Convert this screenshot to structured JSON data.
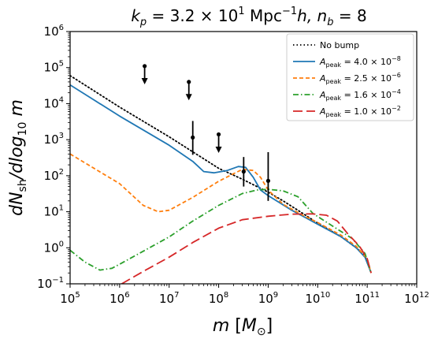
{
  "chart_data": {
    "type": "line",
    "title": "k_p = 3.2 × 10^1 Mpc^-1 h,  n_b = 8",
    "title_parts": {
      "k_label": "k",
      "k_sub": "p",
      "k_value": " = 3.2 × 10",
      "k_exp": "1",
      "units_a": " Mpc",
      "units_exp": "−1",
      "units_b": "h,  ",
      "n_label": "n",
      "n_sub": "b",
      "n_value": " = 8"
    },
    "xlabel": "m [M_⊙]",
    "ylabel": "dN_sh/dlog_10 m",
    "xlabel_parts": {
      "m": "m",
      "open": " [",
      "M": "M",
      "sun": "⊙",
      "close": "]"
    },
    "ylabel_parts": {
      "d1": "dN",
      "sub1": "sh",
      "slash": "/",
      "d2": "d",
      "log": "log",
      "sub2": "10",
      "m": " m"
    },
    "x_scale": "log",
    "y_scale": "log",
    "xlim": [
      100000,
      1000000000000
    ],
    "ylim": [
      0.1,
      1000000
    ],
    "x_ticks": [
      {
        "value": 100000,
        "base": "10",
        "exp": "5"
      },
      {
        "value": 1000000,
        "base": "10",
        "exp": "6"
      },
      {
        "value": 10000000,
        "base": "10",
        "exp": "7"
      },
      {
        "value": 100000000,
        "base": "10",
        "exp": "8"
      },
      {
        "value": 1000000000,
        "base": "10",
        "exp": "9"
      },
      {
        "value": 10000000000,
        "base": "10",
        "exp": "10"
      },
      {
        "value": 100000000000,
        "base": "10",
        "exp": "11"
      },
      {
        "value": 1000000000000,
        "base": "10",
        "exp": "12"
      }
    ],
    "y_ticks": [
      {
        "value": 0.1,
        "base": "10",
        "exp": "−1"
      },
      {
        "value": 1,
        "base": "10",
        "exp": "0"
      },
      {
        "value": 10,
        "base": "10",
        "exp": "1"
      },
      {
        "value": 100,
        "base": "10",
        "exp": "2"
      },
      {
        "value": 1000,
        "base": "10",
        "exp": "3"
      },
      {
        "value": 10000,
        "base": "10",
        "exp": "4"
      },
      {
        "value": 100000,
        "base": "10",
        "exp": "5"
      },
      {
        "value": 1000000,
        "base": "10",
        "exp": "6"
      }
    ],
    "grid": false,
    "legend_position": "top-right",
    "series": [
      {
        "name": "No bump",
        "legend": {
          "pre": "No bump",
          "sub": "",
          "mid": "",
          "exp": ""
        },
        "color": "#000000",
        "style": "dotted",
        "points": [
          [
            100000,
            60000
          ],
          [
            1000000,
            8000
          ],
          [
            10000000,
            1200
          ],
          [
            100000000,
            160
          ],
          [
            300000000,
            80
          ],
          [
            1000000000,
            35
          ],
          [
            2000000000,
            20
          ],
          [
            5000000000,
            9
          ],
          [
            10000000000,
            4.8
          ],
          [
            30000000000,
            2
          ],
          [
            60000000000,
            1
          ],
          [
            90000000000,
            0.6
          ],
          [
            120000000000,
            0.2
          ]
        ]
      },
      {
        "name": "A_peak = 4.0 × 10^-8",
        "legend": {
          "pre": "A",
          "sub": "peak",
          "mid": " = 4.0 × 10",
          "exp": "−8"
        },
        "color": "#1f77b4",
        "style": "solid",
        "points": [
          [
            100000,
            33000
          ],
          [
            1000000,
            4500
          ],
          [
            10000000,
            700
          ],
          [
            30000000,
            250
          ],
          [
            50000000,
            130
          ],
          [
            80000000,
            120
          ],
          [
            150000000,
            140
          ],
          [
            250000000,
            180
          ],
          [
            350000000,
            170
          ],
          [
            500000000,
            90
          ],
          [
            700000000,
            40
          ],
          [
            1000000000,
            28
          ],
          [
            3000000000,
            11
          ],
          [
            10000000000,
            4.5
          ],
          [
            30000000000,
            2
          ],
          [
            60000000000,
            1
          ],
          [
            90000000000,
            0.55
          ],
          [
            120000000000,
            0.2
          ]
        ]
      },
      {
        "name": "A_peak = 2.5 × 10^-6",
        "legend": {
          "pre": "A",
          "sub": "peak",
          "mid": " = 2.5 × 10",
          "exp": "−6"
        },
        "color": "#ff7f0e",
        "style": "dashed",
        "points": [
          [
            100000,
            400
          ],
          [
            1000000,
            60
          ],
          [
            3000000,
            15
          ],
          [
            6000000,
            10
          ],
          [
            10000000,
            11
          ],
          [
            30000000,
            25
          ],
          [
            100000000,
            70
          ],
          [
            300000000,
            150
          ],
          [
            500000000,
            140
          ],
          [
            700000000,
            90
          ],
          [
            1000000000,
            40
          ],
          [
            2000000000,
            16
          ],
          [
            5000000000,
            8
          ],
          [
            10000000000,
            5
          ],
          [
            30000000000,
            2.2
          ],
          [
            60000000000,
            1.1
          ],
          [
            100000000000,
            0.5
          ],
          [
            120000000000,
            0.2
          ]
        ]
      },
      {
        "name": "A_peak = 1.6 × 10^-4",
        "legend": {
          "pre": "A",
          "sub": "peak",
          "mid": " = 1.6 × 10",
          "exp": "−4"
        },
        "color": "#2ca02c",
        "style": "dashdot",
        "points": [
          [
            100000,
            0.85
          ],
          [
            200000,
            0.4
          ],
          [
            400000,
            0.24
          ],
          [
            700000,
            0.27
          ],
          [
            1000000,
            0.35
          ],
          [
            3000000,
            0.8
          ],
          [
            10000000,
            2
          ],
          [
            30000000,
            5.5
          ],
          [
            100000000,
            15
          ],
          [
            300000000,
            32
          ],
          [
            600000000,
            40
          ],
          [
            1000000000,
            42
          ],
          [
            2000000000,
            38
          ],
          [
            4000000000,
            26
          ],
          [
            8000000000,
            9
          ],
          [
            20000000000,
            4
          ],
          [
            50000000000,
            1.8
          ],
          [
            90000000000,
            0.7
          ],
          [
            120000000000,
            0.2
          ]
        ]
      },
      {
        "name": "A_peak = 1.0 × 10^-2",
        "legend": {
          "pre": "A",
          "sub": "peak",
          "mid": " = 1.0 × 10",
          "exp": "−2"
        },
        "color": "#d62728",
        "style": "longdash",
        "points": [
          [
            1100000,
            0.1
          ],
          [
            3000000,
            0.22
          ],
          [
            10000000,
            0.55
          ],
          [
            30000000,
            1.4
          ],
          [
            100000000,
            3.5
          ],
          [
            300000000,
            6
          ],
          [
            1000000000,
            7.5
          ],
          [
            3000000000,
            8.6
          ],
          [
            8000000000,
            8.7
          ],
          [
            15000000000,
            8
          ],
          [
            25000000000,
            5.5
          ],
          [
            40000000000,
            2.5
          ],
          [
            70000000000,
            1.1
          ],
          [
            100000000000,
            0.5
          ],
          [
            120000000000,
            0.2
          ]
        ]
      }
    ],
    "upper_limits": [
      {
        "x": 3200000,
        "y": 110000,
        "arrow_to": 36000
      },
      {
        "x": 25000000,
        "y": 40000,
        "arrow_to": 13000
      },
      {
        "x": 100000000,
        "y": 1400,
        "arrow_to": 450
      }
    ],
    "error_bars": [
      {
        "x": 30000000,
        "y": 1150,
        "ylow": 380,
        "yhigh": 3300
      },
      {
        "x": 320000000,
        "y": 130,
        "ylow": 50,
        "yhigh": 330
      },
      {
        "x": 1000000000,
        "y": 72,
        "ylow": 20,
        "yhigh": 450
      }
    ]
  }
}
